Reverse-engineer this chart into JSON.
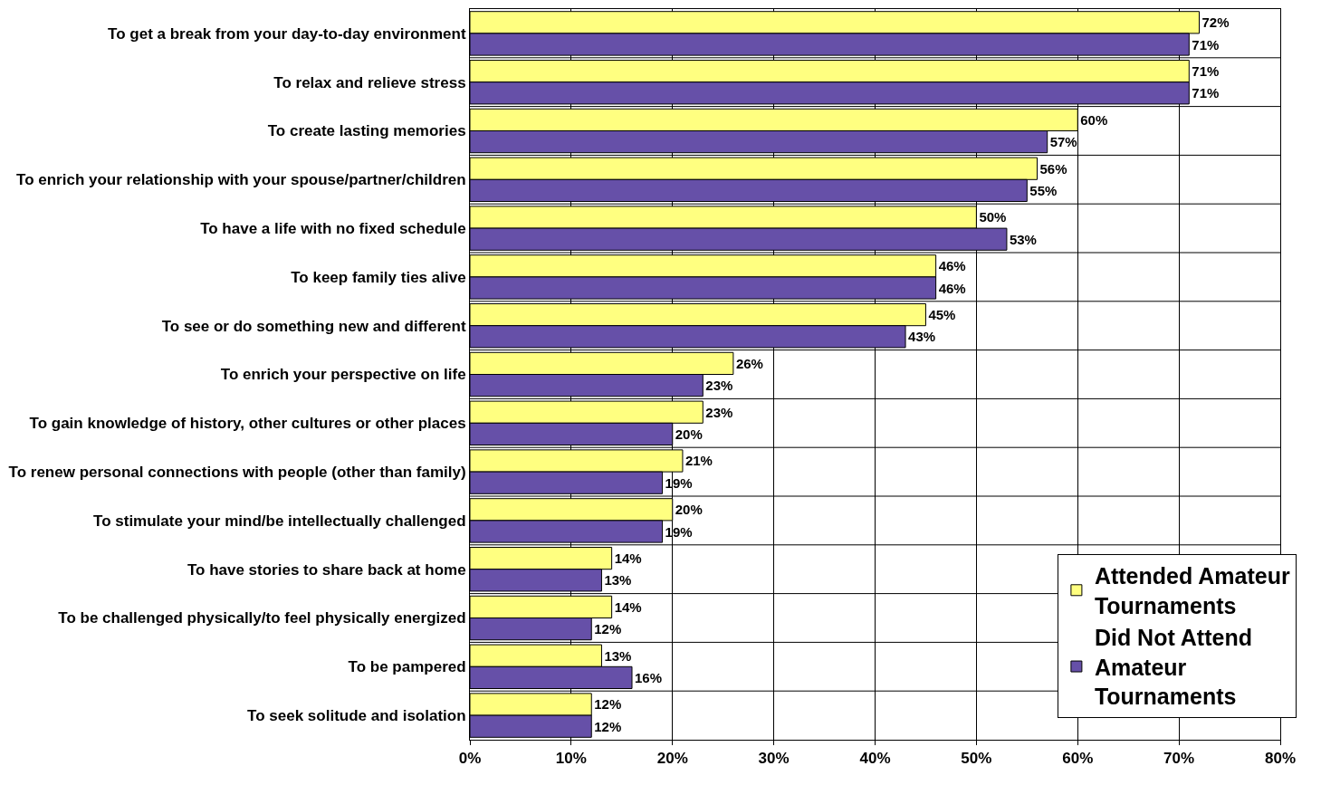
{
  "chart_data": {
    "type": "bar",
    "orientation": "horizontal",
    "categories": [
      "To get a break from your day-to-day environment",
      "To relax and relieve stress",
      "To create lasting memories",
      "To enrich your relationship with your spouse/partner/children",
      "To have a life with no fixed schedule",
      "To keep family ties alive",
      "To see or do something new and different",
      "To enrich your perspective on life",
      "To gain knowledge of history, other cultures or other places",
      "To renew personal connections with people (other than family)",
      "To stimulate your mind/be intellectually challenged",
      "To have stories to share back at home",
      "To be challenged physically/to feel physically energized",
      "To be pampered",
      "To seek solitude and isolation"
    ],
    "series": [
      {
        "name": "Attended Amateur Tournaments",
        "color": "#ffff80",
        "values": [
          72,
          71,
          60,
          56,
          50,
          46,
          45,
          26,
          23,
          21,
          20,
          14,
          14,
          13,
          12
        ],
        "value_labels": [
          "72%",
          "71%",
          "60%",
          "56%",
          "50%",
          "46%",
          "45%",
          "26%",
          "23%",
          "21%",
          "20%",
          "14%",
          "14%",
          "13%",
          "12%"
        ]
      },
      {
        "name": "Did Not Attend Amateur Tournaments",
        "color": "#6650a8",
        "values": [
          71,
          71,
          57,
          55,
          53,
          46,
          43,
          23,
          20,
          19,
          19,
          13,
          12,
          16,
          12
        ],
        "value_labels": [
          "71%",
          "71%",
          "57%",
          "55%",
          "53%",
          "46%",
          "43%",
          "23%",
          "20%",
          "19%",
          "19%",
          "13%",
          "12%",
          "16%",
          "12%"
        ]
      }
    ],
    "xlim": [
      0,
      80
    ],
    "xticks": [
      {
        "value": 0,
        "label": "0%"
      },
      {
        "value": 10,
        "label": "10%"
      },
      {
        "value": 20,
        "label": "20%"
      },
      {
        "value": 30,
        "label": "30%"
      },
      {
        "value": 40,
        "label": "40%"
      },
      {
        "value": 50,
        "label": "50%"
      },
      {
        "value": 60,
        "label": "60%"
      },
      {
        "value": 70,
        "label": "70%"
      },
      {
        "value": 80,
        "label": "80%"
      }
    ],
    "grid": true,
    "legend": "bottom right"
  }
}
